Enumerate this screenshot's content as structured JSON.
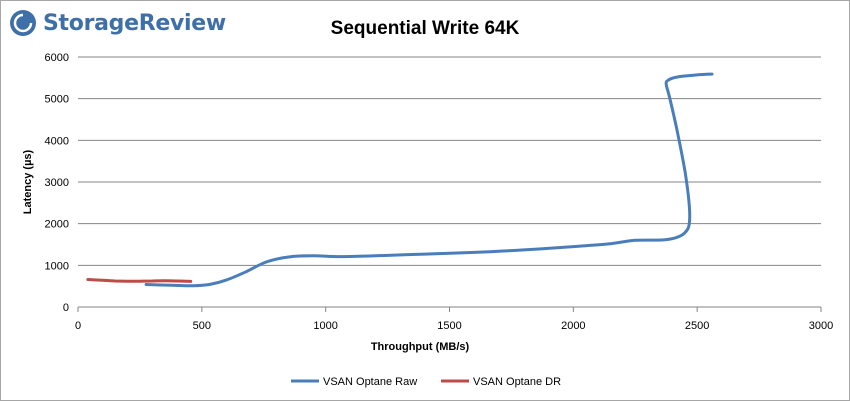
{
  "brand": {
    "name": "StorageReview",
    "logo_icon": "storagereview-logo-icon",
    "color": "#3f6fa8"
  },
  "chart_data": {
    "type": "line",
    "title": "Sequential Write 64K",
    "xlabel": "Throughput (MB/s)",
    "ylabel": "Latency (µs)",
    "xlim": [
      0,
      3000
    ],
    "ylim": [
      0,
      6000
    ],
    "xticks": [
      0,
      500,
      1000,
      1500,
      2000,
      2500,
      3000
    ],
    "yticks": [
      0,
      1000,
      2000,
      3000,
      4000,
      5000,
      6000
    ],
    "grid": "horizontal",
    "legend_position": "bottom",
    "series": [
      {
        "name": "VSAN Optane Raw",
        "color": "#4a7ebb",
        "x": [
          275,
          380,
          460,
          530,
          600,
          680,
          760,
          850,
          950,
          1050,
          1200,
          1400,
          1600,
          1800,
          2000,
          2150,
          2250,
          2380,
          2450,
          2470,
          2455,
          2420,
          2390,
          2375,
          2385,
          2420,
          2500,
          2560
        ],
        "y": [
          540,
          520,
          510,
          540,
          650,
          850,
          1080,
          1200,
          1230,
          1210,
          1230,
          1270,
          1310,
          1370,
          1450,
          1520,
          1600,
          1620,
          1780,
          2150,
          3100,
          4200,
          5000,
          5350,
          5450,
          5520,
          5570,
          5590
        ]
      },
      {
        "name": "VSAN Optane DR",
        "color": "#be4b48",
        "x": [
          40,
          100,
          150,
          200,
          250,
          300,
          350,
          400,
          455
        ],
        "y": [
          660,
          640,
          625,
          620,
          620,
          625,
          630,
          625,
          615
        ]
      }
    ]
  }
}
